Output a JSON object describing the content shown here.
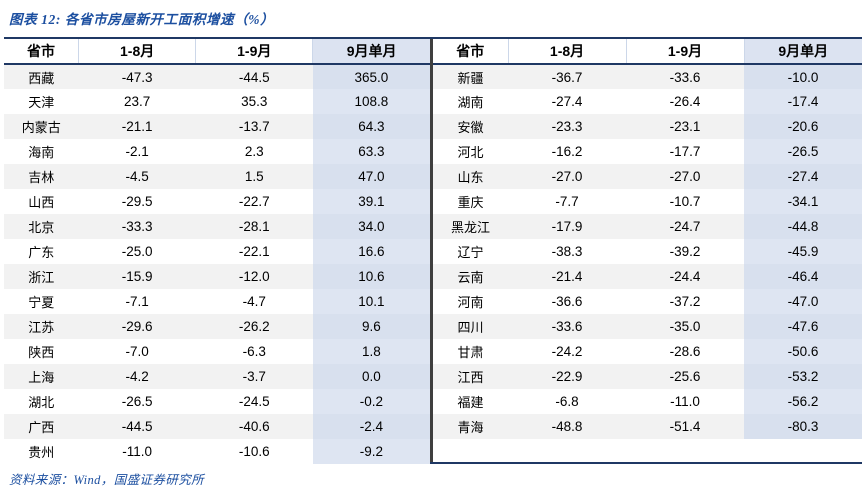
{
  "title": "图表 12:  各省市房屋新开工面积增速（%）",
  "source": "资料来源：Wind，国盛证券研究所",
  "colors": {
    "accent_blue": "#1c4fa0",
    "border_navy": "#1f3864",
    "highlight_fill": "#dce3f1",
    "stripe_fill": "#f2f2f2",
    "divider_dark": "#3f3f3f"
  },
  "chart_data": {
    "type": "table",
    "figure_label": "图表 12",
    "title": "各省市房屋新开工面积增速（%）",
    "unit": "%",
    "columns": [
      "省市",
      "1-8月",
      "1-9月",
      "9月单月"
    ],
    "tables": [
      {
        "rows": [
          [
            "西藏",
            "-47.3",
            "-44.5",
            "365.0"
          ],
          [
            "天津",
            "23.7",
            "35.3",
            "108.8"
          ],
          [
            "内蒙古",
            "-21.1",
            "-13.7",
            "64.3"
          ],
          [
            "海南",
            "-2.1",
            "2.3",
            "63.3"
          ],
          [
            "吉林",
            "-4.5",
            "1.5",
            "47.0"
          ],
          [
            "山西",
            "-29.5",
            "-22.7",
            "39.1"
          ],
          [
            "北京",
            "-33.3",
            "-28.1",
            "34.0"
          ],
          [
            "广东",
            "-25.0",
            "-22.1",
            "16.6"
          ],
          [
            "浙江",
            "-15.9",
            "-12.0",
            "10.6"
          ],
          [
            "宁夏",
            "-7.1",
            "-4.7",
            "10.1"
          ],
          [
            "江苏",
            "-29.6",
            "-26.2",
            "9.6"
          ],
          [
            "陕西",
            "-7.0",
            "-6.3",
            "1.8"
          ],
          [
            "上海",
            "-4.2",
            "-3.7",
            "0.0"
          ],
          [
            "湖北",
            "-26.5",
            "-24.5",
            "-0.2"
          ],
          [
            "广西",
            "-44.5",
            "-40.6",
            "-2.4"
          ],
          [
            "贵州",
            "-11.0",
            "-10.6",
            "-9.2"
          ]
        ]
      },
      {
        "rows": [
          [
            "新疆",
            "-36.7",
            "-33.6",
            "-10.0"
          ],
          [
            "湖南",
            "-27.4",
            "-26.4",
            "-17.4"
          ],
          [
            "安徽",
            "-23.3",
            "-23.1",
            "-20.6"
          ],
          [
            "河北",
            "-16.2",
            "-17.7",
            "-26.5"
          ],
          [
            "山东",
            "-27.0",
            "-27.0",
            "-27.4"
          ],
          [
            "重庆",
            "-7.7",
            "-10.7",
            "-34.1"
          ],
          [
            "黑龙江",
            "-17.9",
            "-24.7",
            "-44.8"
          ],
          [
            "辽宁",
            "-38.3",
            "-39.2",
            "-45.9"
          ],
          [
            "云南",
            "-21.4",
            "-24.4",
            "-46.4"
          ],
          [
            "河南",
            "-36.6",
            "-37.2",
            "-47.0"
          ],
          [
            "四川",
            "-33.6",
            "-35.0",
            "-47.6"
          ],
          [
            "甘肃",
            "-24.2",
            "-28.6",
            "-50.6"
          ],
          [
            "江西",
            "-22.9",
            "-25.6",
            "-53.2"
          ],
          [
            "福建",
            "-6.8",
            "-11.0",
            "-56.2"
          ],
          [
            "青海",
            "-48.8",
            "-51.4",
            "-80.3"
          ]
        ]
      }
    ]
  }
}
